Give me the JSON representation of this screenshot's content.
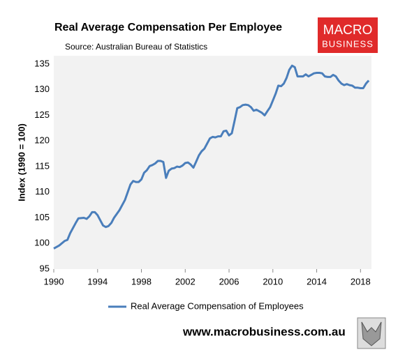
{
  "chart_data": {
    "type": "line",
    "title": "Real Average Compensation Per Employee",
    "subtitle": "Source: Australian Bureau of Statistics",
    "ylabel": "Index (1990 = 100)",
    "logo": [
      "MACRO",
      "BUSINESS"
    ],
    "footer": "www.macrobusiness.com.au",
    "x": [
      1990,
      1990.5,
      1991,
      1991.25,
      1991.5,
      1992,
      1992.25,
      1992.75,
      1993,
      1993.25,
      1993.5,
      1993.75,
      1994,
      1994.25,
      1994.5,
      1994.75,
      1995,
      1995.25,
      1995.5,
      1996,
      1996.5,
      1996.75,
      1997,
      1997.25,
      1997.5,
      1997.75,
      1998,
      1998.25,
      1998.5,
      1998.75,
      1999,
      1999.25,
      1999.5,
      1999.75,
      2000,
      2000.25,
      2000.5,
      2000.75,
      2001,
      2001.25,
      2001.5,
      2001.75,
      2002,
      2002.25,
      2002.5,
      2002.75,
      2003,
      2003.25,
      2003.5,
      2003.75,
      2004,
      2004.25,
      2004.5,
      2004.75,
      2005,
      2005.25,
      2005.5,
      2005.75,
      2006,
      2006.25,
      2006.5,
      2006.75,
      2007,
      2007.25,
      2007.5,
      2007.75,
      2008,
      2008.25,
      2008.5,
      2008.75,
      2009,
      2009.25,
      2009.5,
      2009.75,
      2010,
      2010.25,
      2010.5,
      2010.75,
      2011,
      2011.25,
      2011.5,
      2011.75,
      2012,
      2012.25,
      2012.5,
      2012.75,
      2013,
      2013.25,
      2013.5,
      2013.75,
      2014,
      2014.25,
      2014.5,
      2014.75,
      2015,
      2015.25,
      2015.5,
      2015.75,
      2016,
      2016.25,
      2016.5,
      2016.75,
      2017,
      2017.25,
      2017.5,
      2017.75,
      2018,
      2018.25,
      2018.5,
      2018.75
    ],
    "series": [
      {
        "name": "Real Average Compensation of Employees",
        "color": "#4a7ebb",
        "values": [
          99.0,
          99.6,
          100.5,
          100.7,
          102.0,
          104.0,
          104.9,
          105.0,
          104.8,
          105.3,
          106.1,
          106.1,
          105.5,
          104.5,
          103.5,
          103.2,
          103.4,
          104.0,
          105.0,
          106.5,
          108.5,
          110.0,
          111.5,
          112.2,
          112.0,
          112.0,
          112.5,
          113.8,
          114.3,
          115.1,
          115.3,
          115.6,
          116.1,
          116.1,
          115.9,
          112.8,
          114.2,
          114.6,
          114.7,
          115.0,
          114.9,
          115.2,
          115.7,
          115.8,
          115.4,
          114.8,
          116.0,
          117.2,
          118.0,
          118.5,
          119.5,
          120.5,
          120.8,
          120.7,
          120.9,
          120.9,
          121.9,
          122.0,
          121.1,
          121.5,
          123.9,
          126.4,
          126.6,
          127.0,
          127.1,
          127.0,
          126.6,
          125.9,
          126.1,
          125.8,
          125.5,
          125.0,
          125.8,
          126.6,
          127.9,
          129.2,
          130.8,
          130.7,
          131.2,
          132.3,
          133.9,
          134.7,
          134.4,
          132.6,
          132.6,
          132.6,
          133.0,
          132.6,
          132.9,
          133.2,
          133.3,
          133.3,
          133.2,
          132.6,
          132.5,
          132.5,
          132.9,
          132.6,
          131.8,
          131.2,
          130.9,
          131.1,
          130.9,
          130.8,
          130.4,
          130.4,
          130.3,
          130.3,
          131.2,
          131.8
        ]
      }
    ],
    "xlim": [
      1990,
      2019
    ],
    "xticks": [
      1990,
      1994,
      1998,
      2002,
      2006,
      2010,
      2014,
      2018
    ],
    "ylim": [
      95,
      135
    ],
    "yticks": [
      95,
      100,
      105,
      110,
      115,
      120,
      125,
      130,
      135
    ],
    "grid": false,
    "legend": "bottom"
  }
}
